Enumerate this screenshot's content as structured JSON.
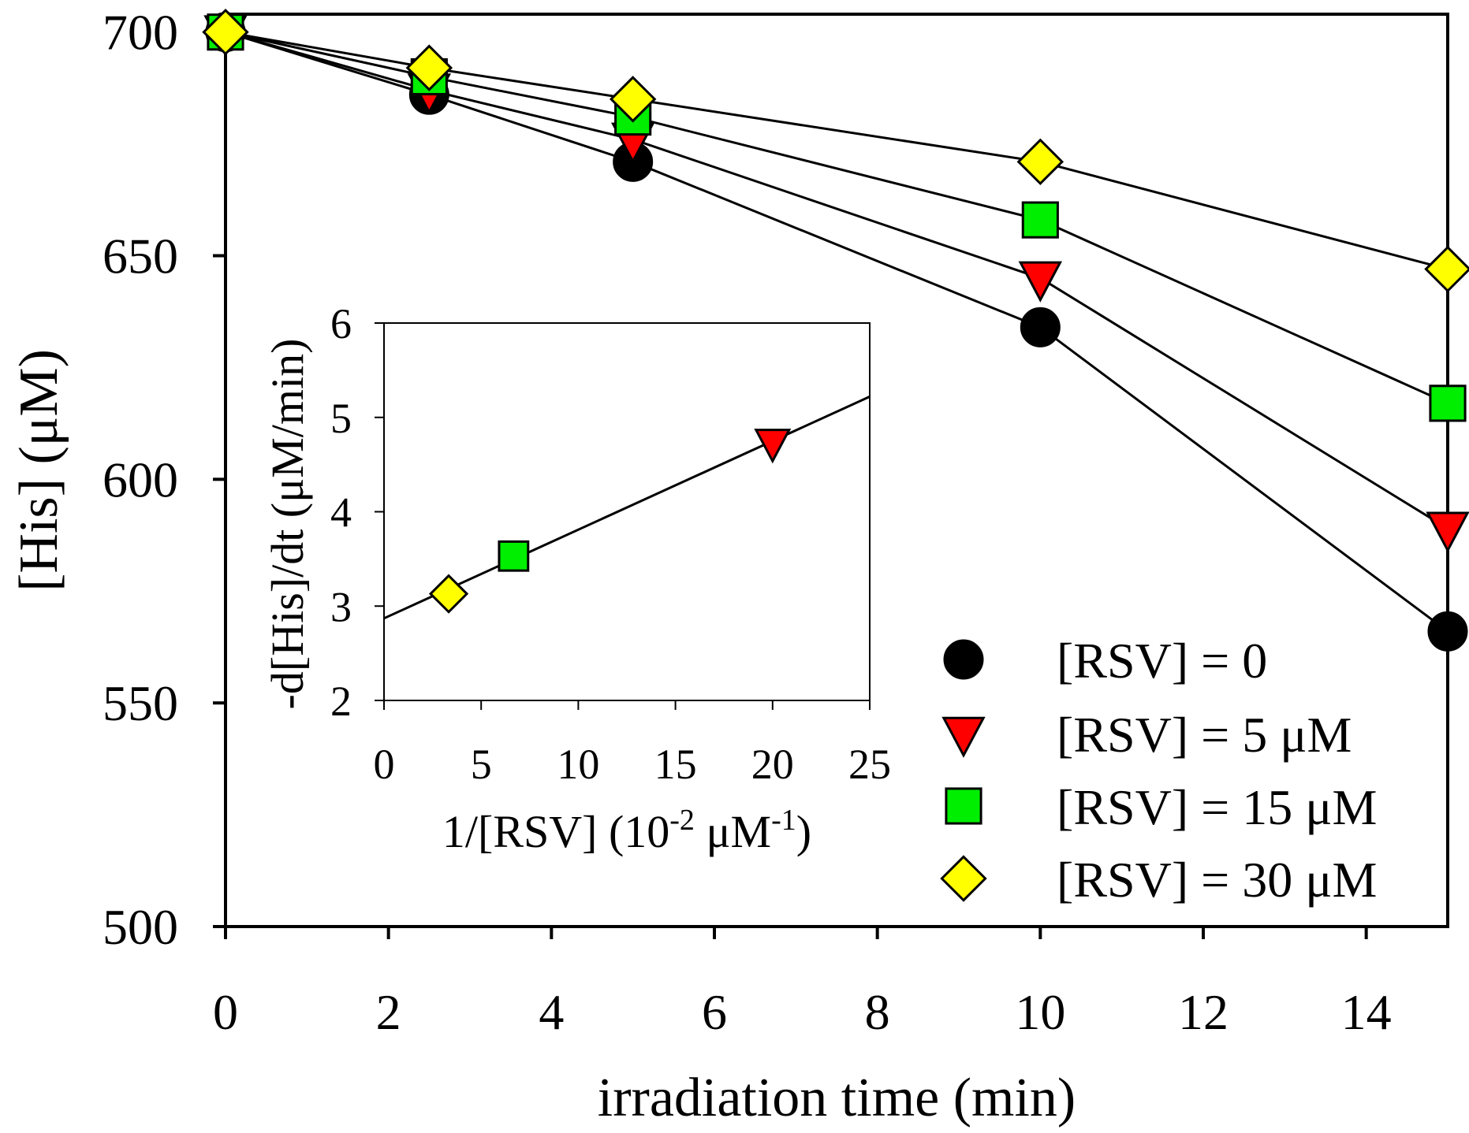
{
  "chart_data": [
    {
      "type": "line",
      "role": "main",
      "xlabel": "irradiation time (min)",
      "ylabel": "[His] (μM)",
      "xlim": [
        0,
        15
      ],
      "ylim": [
        500,
        704
      ],
      "xticks": [
        0,
        2,
        4,
        6,
        8,
        10,
        12,
        14
      ],
      "yticks": [
        500,
        550,
        600,
        650,
        700
      ],
      "x": [
        0,
        2.5,
        5,
        10,
        15
      ],
      "series": [
        {
          "name": "[RSV] = 0",
          "marker": "circle",
          "color": "#000000",
          "values": [
            700,
            686,
            671,
            634,
            566
          ]
        },
        {
          "name": "[RSV] = 5 μM",
          "marker": "triangle-down",
          "color": "#ff0000",
          "values": [
            700,
            687,
            676,
            645,
            589
          ]
        },
        {
          "name": "[RSV] = 15 μM",
          "marker": "square",
          "color": "#00ee00",
          "values": [
            700,
            690,
            681,
            658,
            617
          ]
        },
        {
          "name": "[RSV] = 30 μM",
          "marker": "diamond",
          "color": "#ffff00",
          "values": [
            700,
            692,
            685,
            671,
            647
          ]
        }
      ],
      "legend": {
        "position": "bottom-right",
        "entries": [
          "[RSV] = 0",
          "[RSV] = 5 μM",
          "[RSV] = 15 μM",
          "[RSV] = 30 μM"
        ]
      }
    },
    {
      "type": "scatter",
      "role": "inset",
      "xlabel_parts": [
        "1/[RSV] (10",
        "-2",
        " μM",
        "-1",
        ")"
      ],
      "ylabel": "-d[His]/dt (μM/min)",
      "xlim": [
        0,
        25
      ],
      "ylim": [
        2,
        6
      ],
      "xticks": [
        0,
        5,
        10,
        15,
        20,
        25
      ],
      "yticks": [
        2,
        3,
        4,
        5,
        6
      ],
      "points": [
        {
          "x": 3.33,
          "y": 3.13,
          "marker": "diamond",
          "color": "#ffff00"
        },
        {
          "x": 6.67,
          "y": 3.53,
          "marker": "square",
          "color": "#00ee00"
        },
        {
          "x": 20,
          "y": 4.73,
          "marker": "triangle-down",
          "color": "#ff0000"
        }
      ],
      "fit_line": {
        "x": [
          0,
          25
        ],
        "y": [
          2.87,
          5.22
        ]
      }
    }
  ]
}
